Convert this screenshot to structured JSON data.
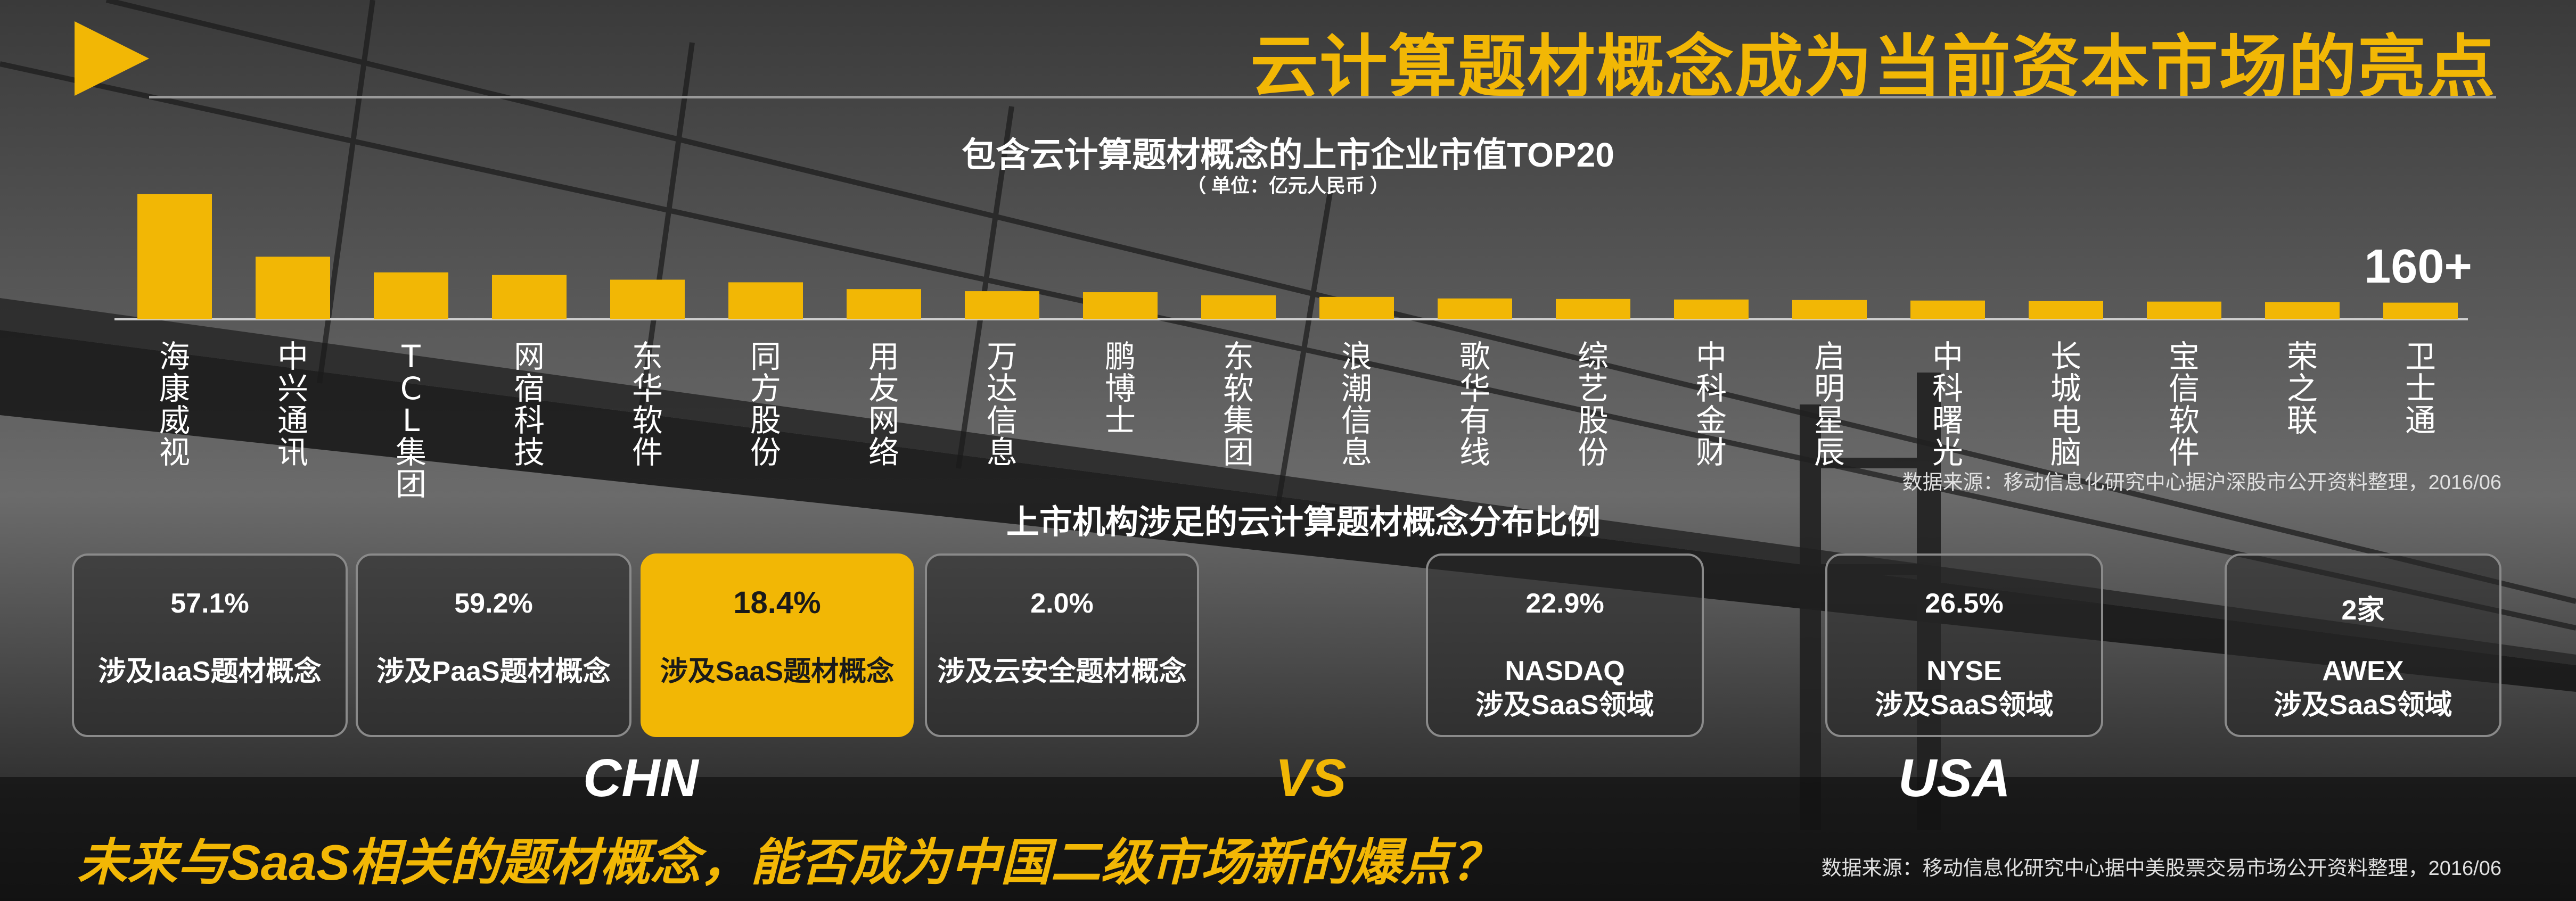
{
  "header": {
    "title": "云计算题材概念成为当前资本市场的亮点"
  },
  "chart_title": "包含云计算题材概念的上市企业市值TOP20",
  "chart_unit": "（ 单位：亿元人民币 ）",
  "chart_data": {
    "type": "bar",
    "title": "包含云计算题材概念的上市企业市值TOP20",
    "ylabel": "亿元人民币",
    "categories": [
      "海康威视",
      "中兴通讯",
      "TCL集团",
      "网宿科技",
      "东华软件",
      "同方股份",
      "用友网络",
      "万达信息",
      "鹏博士",
      "东软集团",
      "浪潮信息",
      "歌华有线",
      "综艺股份",
      "中科金财",
      "启明星辰",
      "中科曙光",
      "长城电脑",
      "宝信软件",
      "荣之联",
      "卫士通"
    ],
    "values": [
      1200,
      600,
      450,
      425,
      380,
      355,
      290,
      270,
      260,
      230,
      215,
      200,
      195,
      190,
      185,
      180,
      175,
      170,
      165,
      160
    ],
    "value_label_last": "160+",
    "color": "#f2b705",
    "ylim": [
      0,
      1250
    ]
  },
  "source_top": "数据来源：移动信息化研究中心据沪深股市公开资料整理，2016/06",
  "distribution": {
    "title": "上市机构涉足的云计算题材概念分布比例",
    "chn_cards": [
      {
        "pct": "57.1%",
        "desc": "涉及IaaS题材概念"
      },
      {
        "pct": "59.2%",
        "desc": "涉及PaaS题材概念"
      },
      {
        "pct": "18.4%",
        "desc": "涉及SaaS题材概念"
      },
      {
        "pct": "2.0%",
        "desc": "涉及云安全题材概念"
      }
    ],
    "usa_cards": [
      {
        "pct": "22.9%",
        "line1": "NASDAQ",
        "line2": "涉及SaaS领域"
      },
      {
        "pct": "26.5%",
        "line1": "NYSE",
        "line2": "涉及SaaS领域"
      },
      {
        "pct": "2家",
        "line1": "AWEX",
        "line2": "涉及SaaS领域"
      }
    ],
    "highlight_color": "#f2b705"
  },
  "regions": {
    "chn": "CHN",
    "vs": "VS",
    "usa": "USA"
  },
  "bottom_question": "未来与SaaS相关的题材概念，能否成为中国二级市场新的爆点？",
  "source_bottom": "数据来源：移动信息化研究中心据中美股票交易市场公开资料整理，2016/06"
}
